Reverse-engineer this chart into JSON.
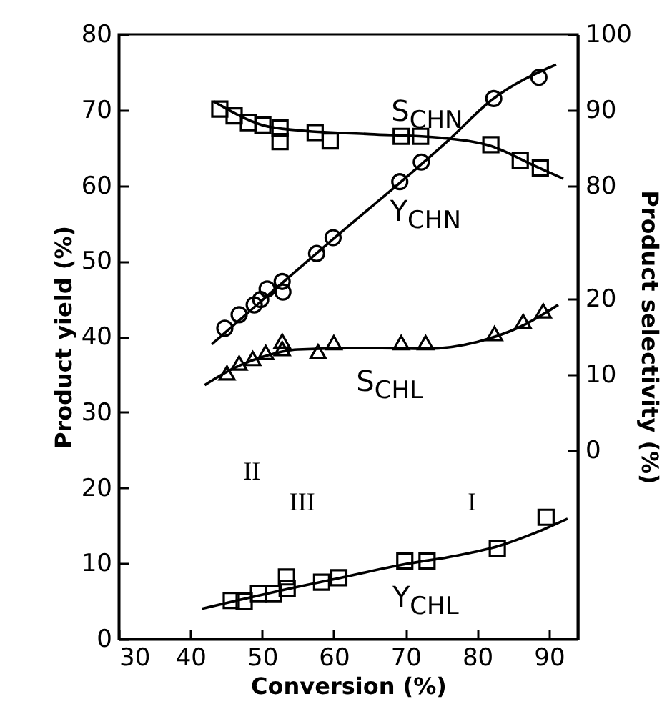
{
  "chart_data": {
    "type": "scatter",
    "xlabel": "Conversion (%)",
    "ylabel": "Product yield (%)",
    "y2label": "Product selectivity (%)",
    "xlim": [
      30,
      94
    ],
    "xticks": [
      30,
      40,
      50,
      60,
      70,
      80,
      90
    ],
    "ylim": [
      0,
      80
    ],
    "yticks": [
      0,
      10,
      20,
      30,
      40,
      50,
      60,
      70,
      80
    ],
    "y2lim": [
      20,
      100
    ],
    "y2ticks": [
      80,
      90,
      100
    ],
    "y3lim": [
      -25,
      55
    ],
    "y3ticks": [
      0,
      10,
      20
    ],
    "grid": false,
    "series": [
      {
        "type": "scatter",
        "marker": "circle",
        "color": "#000000",
        "x": [
          44.8,
          46.8,
          48.9,
          49.8,
          50.7,
          52.8,
          52.9,
          57.6,
          59.9,
          69.2,
          72.2,
          82.3,
          88.6
        ],
        "values": [
          41.1,
          42.9,
          44.2,
          44.9,
          46.3,
          47.3,
          45.9,
          51.0,
          53.1,
          60.5,
          63.1,
          71.5,
          74.3
        ]
      },
      {
        "type": "line",
        "name": "Y$_{CHN}$",
        "color": "#000000",
        "x": [
          43,
          50,
          60,
          70,
          76,
          82,
          91
        ],
        "values": [
          39,
          44.8,
          53,
          61,
          66,
          71.3,
          76
        ]
      },
      {
        "type": "scatter",
        "axis": "y2",
        "marker": "square",
        "color": "#000000",
        "x": [
          44.1,
          46.1,
          48.1,
          50.1,
          52.5,
          52.5,
          57.4,
          59.5,
          69.4,
          72.1,
          81.9,
          86.0,
          88.8
        ],
        "values": [
          90.1,
          89.2,
          88.3,
          88.0,
          87.6,
          85.8,
          87.0,
          85.9,
          86.5,
          86.5,
          85.4,
          83.3,
          82.3
        ]
      },
      {
        "type": "line",
        "name": "S$_{CHN}$",
        "axis": "y2",
        "color": "#000000",
        "x": [
          43.3,
          50,
          55,
          65,
          75,
          82,
          88,
          92
        ],
        "values": [
          91.1,
          88,
          87.3,
          86.8,
          86.3,
          85.2,
          82.6,
          80.9
        ]
      },
      {
        "type": "scatter",
        "axis": "y3",
        "marker": "triangle",
        "color": "#000000",
        "x": [
          45.1,
          46.8,
          48.7,
          50.5,
          52.8,
          52.8,
          57.8,
          60.0,
          69.4,
          72.8,
          82.4,
          86.4,
          89.2
        ],
        "values": [
          10.2,
          11.5,
          12.1,
          12.9,
          13.4,
          14.4,
          13.0,
          14.2,
          14.2,
          14.2,
          15.4,
          17.0,
          18.4
        ]
      },
      {
        "type": "line",
        "name": "S$_{CHL}$",
        "axis": "y3",
        "color": "#000000",
        "x": [
          42,
          46,
          50,
          55,
          65,
          73,
          80,
          86,
          91.3
        ],
        "values": [
          8.6,
          10.8,
          12.3,
          13.3,
          13.5,
          13.4,
          14.3,
          16.3,
          19.2
        ]
      },
      {
        "type": "scatter",
        "marker": "square",
        "color": "#000000",
        "x": [
          45.7,
          47.5,
          49.5,
          51.6,
          53.4,
          53.5,
          58.3,
          60.7,
          69.9,
          73.0,
          82.8,
          89.6
        ],
        "values": [
          5.1,
          5.0,
          6.0,
          6.0,
          8.2,
          6.7,
          7.5,
          8.1,
          10.3,
          10.3,
          12.0,
          16.1
        ]
      },
      {
        "type": "line",
        "name": "Y$_{CHL}$",
        "color": "#000000",
        "x": [
          41.6,
          47,
          53.5,
          60,
          70,
          77,
          83,
          88,
          92.6
        ],
        "values": [
          4,
          5.2,
          6.6,
          7.9,
          9.9,
          11,
          12.3,
          14,
          15.9
        ]
      }
    ],
    "annotations": [
      "II",
      "III",
      "I"
    ]
  }
}
